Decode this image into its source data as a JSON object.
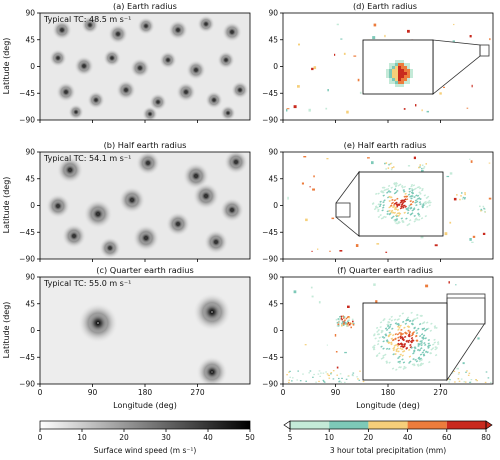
{
  "panels": [
    {
      "title": "(a) Earth radius",
      "typical_tc": "Typical TC: 48.5 m s⁻¹",
      "type": "wind"
    },
    {
      "title": "(b) Half earth radius",
      "typical_tc": "Typical TC: 54.1 m s⁻¹",
      "type": "wind"
    },
    {
      "title": "(c) Quarter earth radius",
      "typical_tc": "Typical TC: 55.0 m s⁻¹",
      "type": "wind"
    },
    {
      "title": "(d) Earth radius",
      "type": "precip"
    },
    {
      "title": "(e) Half earth radius",
      "type": "precip"
    },
    {
      "title": "(f) Quarter earth radius",
      "type": "precip"
    }
  ],
  "axes": {
    "ylabel": "Latitude (deg)",
    "xlabel": "Longitude (deg)",
    "lat_ticks": [
      "90",
      "45",
      "0",
      "−45",
      "−90"
    ],
    "lon_ticks": [
      "0",
      "90",
      "180",
      "270"
    ]
  },
  "colorbars": {
    "wind": {
      "label": "Surface wind speed (m s⁻¹)",
      "ticks": [
        "0",
        "10",
        "20",
        "30",
        "40",
        "50"
      ],
      "range": [
        0,
        50
      ],
      "colors": [
        "#ffffff",
        "#000000"
      ]
    },
    "precip": {
      "label": "3 hour total precipitation (mm)",
      "ticks": [
        "5",
        "10",
        "20",
        "40",
        "60",
        "80"
      ],
      "bins": [
        {
          "from": 5,
          "to": 10,
          "color": "#c4ead8"
        },
        {
          "from": 10,
          "to": 20,
          "color": "#7dc9b8"
        },
        {
          "from": 20,
          "to": 40,
          "color": "#f6cf7a"
        },
        {
          "from": 40,
          "to": 60,
          "color": "#ec7c3c"
        },
        {
          "from": 60,
          "to": 80,
          "color": "#c92a1e"
        }
      ],
      "extend": "both"
    }
  }
}
